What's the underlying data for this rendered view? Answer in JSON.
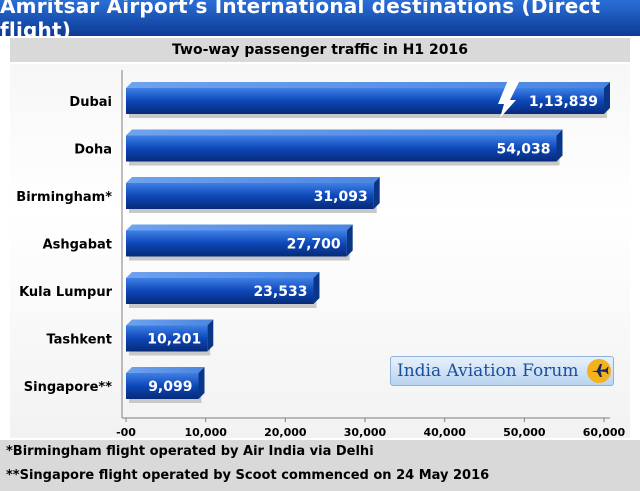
{
  "title": "Amritsar Airport’s International destinations (Direct flight)",
  "subtitle": "Two-way passenger traffic in H1 2016",
  "chart_data": {
    "type": "bar",
    "orientation": "horizontal",
    "title": "Amritsar Airport’s International destinations (Direct flight)",
    "subtitle": "Two-way passenger traffic in H1 2016",
    "categories": [
      "Dubai",
      "Doha",
      "Birmingham*",
      "Ashgabat",
      "Kula Lumpur",
      "Tashkent",
      "Singapore**"
    ],
    "values": [
      113839,
      54038,
      31093,
      27700,
      23533,
      10201,
      9099
    ],
    "value_labels": [
      "1,13,839",
      "54,038",
      "31,093",
      "27,700",
      "23,533",
      "10,201",
      "9,099"
    ],
    "x_ticks": [
      0,
      10000,
      20000,
      30000,
      40000,
      50000,
      60000
    ],
    "x_tick_labels": [
      "-00",
      "10,000",
      "20,000",
      "30,000",
      "40,000",
      "50,000",
      "60,000"
    ],
    "xlim": [
      0,
      60000
    ],
    "axis_break": "Dubai bar truncated beyond axis range",
    "xlabel": "",
    "ylabel": "",
    "bar_color": "#0d47b8"
  },
  "footnotes": [
    "*Birmingham flight operated by Air India via Delhi",
    "**Singapore flight operated by Scoot commenced on 24 May 2016"
  ],
  "logo": {
    "text": "India Aviation Forum"
  }
}
